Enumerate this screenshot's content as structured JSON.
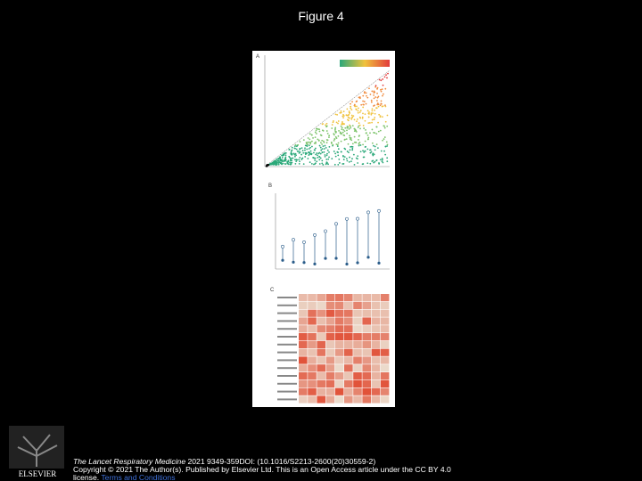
{
  "slide": {
    "title": "Figure 4",
    "figure": {
      "panels": [
        "A",
        "B",
        "C"
      ]
    },
    "logo": "ELSEVIER",
    "citation": {
      "journal": "The Lancet Respiratory Medicine",
      "details": " 2021 9349-359DOI: (10.1016/S2213-2600(20)30559-2) ",
      "copyright": "Copyright © 2021 The Author(s). Published by Elsevier Ltd. This is an Open Access article under the CC BY 4.0 license.",
      "link": "Terms and Conditions"
    }
  }
}
